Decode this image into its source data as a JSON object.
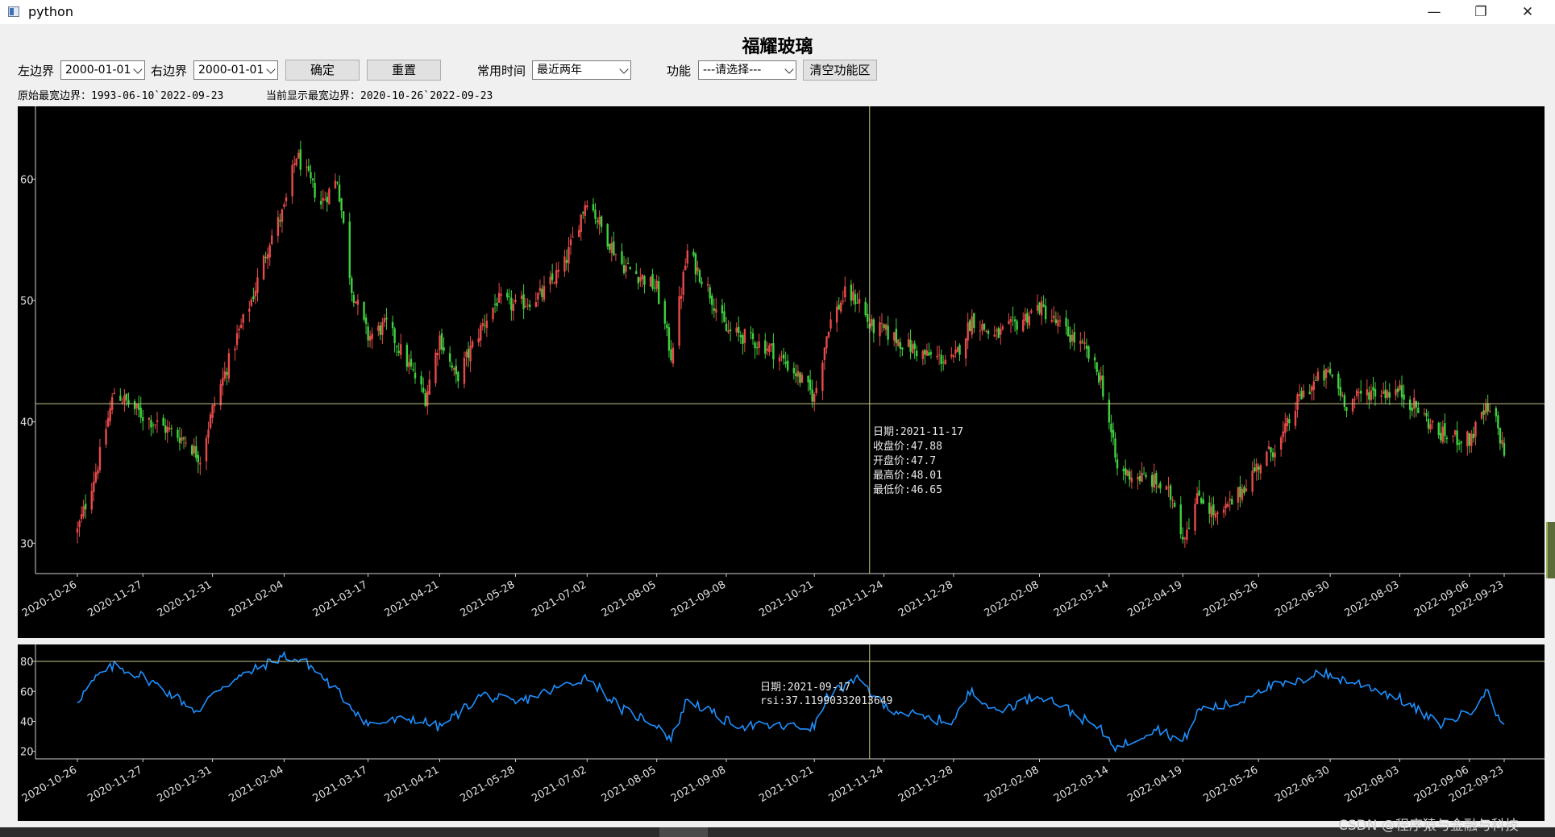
{
  "window": {
    "title": "python"
  },
  "stock_name": "福耀玻璃",
  "controls": {
    "left_label": "左边界",
    "left_value": "2000-01-01",
    "right_label": "右边界",
    "right_value": "2000-01-01",
    "confirm": "确定",
    "reset": "重置",
    "range_label": "常用时间",
    "range_value": "最近两年",
    "func_label": "功能",
    "func_value": "---请选择---",
    "clear_func": "清空功能区"
  },
  "info": {
    "original_bounds": "原始最宽边界：1993-06-10`2022-09-23",
    "current_bounds": "当前显示最宽边界：2020-10-26`2022-09-23"
  },
  "x_tick_labels": [
    "2020-10-26",
    "2020-11-27",
    "2020-12-31",
    "2021-02-04",
    "2021-03-17",
    "2021-04-21",
    "2021-05-28",
    "2021-07-02",
    "2021-08-05",
    "2021-09-08",
    "2021-10-21",
    "2021-11-24",
    "2021-12-28",
    "2022-02-08",
    "2022-03-14",
    "2022-04-19",
    "2022-05-26",
    "2022-06-30",
    "2022-08-03",
    "2022-09-06",
    "2022-09-23"
  ],
  "main_tooltip": {
    "date": "日期:2021-11-17",
    "close": "收盘价:47.88",
    "open": "开盘价:47.7",
    "high": "最高价:48.01",
    "low": "最低价:46.65"
  },
  "rsi_tooltip": {
    "date": "日期:2021-09-17",
    "rsi": "rsi:37.11990332013649"
  },
  "watermark": "CSDN @程序猿与金融与科技",
  "colors": {
    "up": "#e84a4a",
    "down": "#3fd03f",
    "rsi_line": "#1e90ff",
    "crosshair": "#c8c88a",
    "background": "#000000"
  },
  "chart_data": [
    {
      "type": "candlestick",
      "title": "福耀玻璃",
      "x_range": [
        "2020-10-26",
        "2022-09-23"
      ],
      "ylim": [
        27.5,
        66
      ],
      "y_ticks": [
        30,
        40,
        50,
        60
      ],
      "close_trend": [
        {
          "date": "2020-10-26",
          "close": 31
        },
        {
          "date": "2020-11-05",
          "close": 36.5
        },
        {
          "date": "2020-11-13",
          "close": 42.5
        },
        {
          "date": "2020-11-27",
          "close": 40.5
        },
        {
          "date": "2020-12-18",
          "close": 38.5
        },
        {
          "date": "2020-12-25",
          "close": 37
        },
        {
          "date": "2020-12-31",
          "close": 41
        },
        {
          "date": "2021-01-12",
          "close": 47
        },
        {
          "date": "2021-01-20",
          "close": 50.5
        },
        {
          "date": "2021-01-28",
          "close": 55
        },
        {
          "date": "2021-02-04",
          "close": 57.5
        },
        {
          "date": "2021-02-10",
          "close": 62
        },
        {
          "date": "2021-02-22",
          "close": 58
        },
        {
          "date": "2021-03-02",
          "close": 60
        },
        {
          "date": "2021-03-09",
          "close": 51
        },
        {
          "date": "2021-03-17",
          "close": 47
        },
        {
          "date": "2021-03-26",
          "close": 48
        },
        {
          "date": "2021-04-08",
          "close": 44
        },
        {
          "date": "2021-04-14",
          "close": 42
        },
        {
          "date": "2021-04-21",
          "close": 47
        },
        {
          "date": "2021-04-29",
          "close": 43.5
        },
        {
          "date": "2021-05-12",
          "close": 48
        },
        {
          "date": "2021-05-19",
          "close": 50
        },
        {
          "date": "2021-05-28",
          "close": 49.5
        },
        {
          "date": "2021-06-10",
          "close": 50.5
        },
        {
          "date": "2021-06-21",
          "close": 53
        },
        {
          "date": "2021-06-28",
          "close": 56.5
        },
        {
          "date": "2021-07-02",
          "close": 58.5
        },
        {
          "date": "2021-07-09",
          "close": 56
        },
        {
          "date": "2021-07-19",
          "close": 53
        },
        {
          "date": "2021-07-28",
          "close": 52
        },
        {
          "date": "2021-08-05",
          "close": 51
        },
        {
          "date": "2021-08-12",
          "close": 45.5
        },
        {
          "date": "2021-08-20",
          "close": 54
        },
        {
          "date": "2021-08-30",
          "close": 51
        },
        {
          "date": "2021-09-08",
          "close": 47.5
        },
        {
          "date": "2021-09-17",
          "close": 47
        },
        {
          "date": "2021-09-30",
          "close": 46
        },
        {
          "date": "2021-10-12",
          "close": 44
        },
        {
          "date": "2021-10-21",
          "close": 42
        },
        {
          "date": "2021-10-28",
          "close": 48
        },
        {
          "date": "2021-11-05",
          "close": 50.5
        },
        {
          "date": "2021-11-12",
          "close": 50
        },
        {
          "date": "2021-11-17",
          "close": 47.88
        },
        {
          "date": "2021-11-24",
          "close": 47.5
        },
        {
          "date": "2021-12-03",
          "close": 46.5
        },
        {
          "date": "2021-12-14",
          "close": 45.5
        },
        {
          "date": "2021-12-28",
          "close": 45
        },
        {
          "date": "2022-01-06",
          "close": 48.5
        },
        {
          "date": "2022-01-17",
          "close": 47
        },
        {
          "date": "2022-01-27",
          "close": 48
        },
        {
          "date": "2022-02-08",
          "close": 49.5
        },
        {
          "date": "2022-02-17",
          "close": 48
        },
        {
          "date": "2022-03-02",
          "close": 46
        },
        {
          "date": "2022-03-10",
          "close": 43.5
        },
        {
          "date": "2022-03-14",
          "close": 40
        },
        {
          "date": "2022-03-18",
          "close": 36
        },
        {
          "date": "2022-03-28",
          "close": 35.5
        },
        {
          "date": "2022-04-06",
          "close": 35
        },
        {
          "date": "2022-04-15",
          "close": 33.5
        },
        {
          "date": "2022-04-19",
          "close": 30.5
        },
        {
          "date": "2022-04-27",
          "close": 34
        },
        {
          "date": "2022-05-06",
          "close": 32
        },
        {
          "date": "2022-05-16",
          "close": 34
        },
        {
          "date": "2022-05-26",
          "close": 36.5
        },
        {
          "date": "2022-06-06",
          "close": 38.5
        },
        {
          "date": "2022-06-15",
          "close": 42
        },
        {
          "date": "2022-06-24",
          "close": 43.5
        },
        {
          "date": "2022-06-30",
          "close": 44
        },
        {
          "date": "2022-07-08",
          "close": 41.5
        },
        {
          "date": "2022-07-18",
          "close": 42.5
        },
        {
          "date": "2022-08-03",
          "close": 42.5
        },
        {
          "date": "2022-08-12",
          "close": 41
        },
        {
          "date": "2022-08-22",
          "close": 39
        },
        {
          "date": "2022-09-06",
          "close": 38.5
        },
        {
          "date": "2022-09-14",
          "close": 41
        },
        {
          "date": "2022-09-19",
          "close": 40
        },
        {
          "date": "2022-09-23",
          "close": 37.5
        }
      ],
      "crosshair": {
        "date": "2021-11-17",
        "price": 41.5
      }
    },
    {
      "type": "line",
      "series": [
        {
          "values_trend": [
            {
              "date": "2020-10-26",
              "rsi": 54
            },
            {
              "date": "2020-11-05",
              "rsi": 70
            },
            {
              "date": "2020-11-13",
              "rsi": 77
            },
            {
              "date": "2020-11-27",
              "rsi": 70
            },
            {
              "date": "2020-12-18",
              "rsi": 52
            },
            {
              "date": "2020-12-25",
              "rsi": 45
            },
            {
              "date": "2020-12-31",
              "rsi": 60
            },
            {
              "date": "2021-01-20",
              "rsi": 74
            },
            {
              "date": "2021-02-04",
              "rsi": 84
            },
            {
              "date": "2021-02-16",
              "rsi": 78
            },
            {
              "date": "2021-03-02",
              "rsi": 60
            },
            {
              "date": "2021-03-17",
              "rsi": 38
            },
            {
              "date": "2021-04-08",
              "rsi": 42
            },
            {
              "date": "2021-04-21",
              "rsi": 36
            },
            {
              "date": "2021-05-12",
              "rsi": 58
            },
            {
              "date": "2021-05-28",
              "rsi": 52
            },
            {
              "date": "2021-06-21",
              "rsi": 64
            },
            {
              "date": "2021-07-02",
              "rsi": 70
            },
            {
              "date": "2021-07-19",
              "rsi": 48
            },
            {
              "date": "2021-08-05",
              "rsi": 38
            },
            {
              "date": "2021-08-12",
              "rsi": 28
            },
            {
              "date": "2021-08-20",
              "rsi": 55
            },
            {
              "date": "2021-09-08",
              "rsi": 40
            },
            {
              "date": "2021-09-17",
              "rsi": 37.12
            },
            {
              "date": "2021-10-21",
              "rsi": 36
            },
            {
              "date": "2021-10-28",
              "rsi": 58
            },
            {
              "date": "2021-11-12",
              "rsi": 68
            },
            {
              "date": "2021-11-24",
              "rsi": 50
            },
            {
              "date": "2021-12-14",
              "rsi": 42
            },
            {
              "date": "2021-12-28",
              "rsi": 40
            },
            {
              "date": "2022-01-06",
              "rsi": 62
            },
            {
              "date": "2022-01-17",
              "rsi": 46
            },
            {
              "date": "2022-02-08",
              "rsi": 58
            },
            {
              "date": "2022-02-17",
              "rsi": 52
            },
            {
              "date": "2022-03-10",
              "rsi": 34
            },
            {
              "date": "2022-03-18",
              "rsi": 22
            },
            {
              "date": "2022-04-06",
              "rsi": 36
            },
            {
              "date": "2022-04-19",
              "rsi": 26
            },
            {
              "date": "2022-04-27",
              "rsi": 48
            },
            {
              "date": "2022-05-16",
              "rsi": 52
            },
            {
              "date": "2022-05-26",
              "rsi": 62
            },
            {
              "date": "2022-06-15",
              "rsi": 66
            },
            {
              "date": "2022-06-24",
              "rsi": 74
            },
            {
              "date": "2022-06-30",
              "rsi": 70
            },
            {
              "date": "2022-07-18",
              "rsi": 64
            },
            {
              "date": "2022-08-03",
              "rsi": 55
            },
            {
              "date": "2022-08-22",
              "rsi": 38
            },
            {
              "date": "2022-09-06",
              "rsi": 46
            },
            {
              "date": "2022-09-14",
              "rsi": 61
            },
            {
              "date": "2022-09-19",
              "rsi": 46
            },
            {
              "date": "2022-09-23",
              "rsi": 38
            }
          ]
        }
      ],
      "ylim": [
        15,
        87
      ],
      "y_ticks": [
        20,
        40,
        60,
        80
      ],
      "crosshair": {
        "date": "2021-11-17",
        "rsi": 80
      }
    }
  ]
}
